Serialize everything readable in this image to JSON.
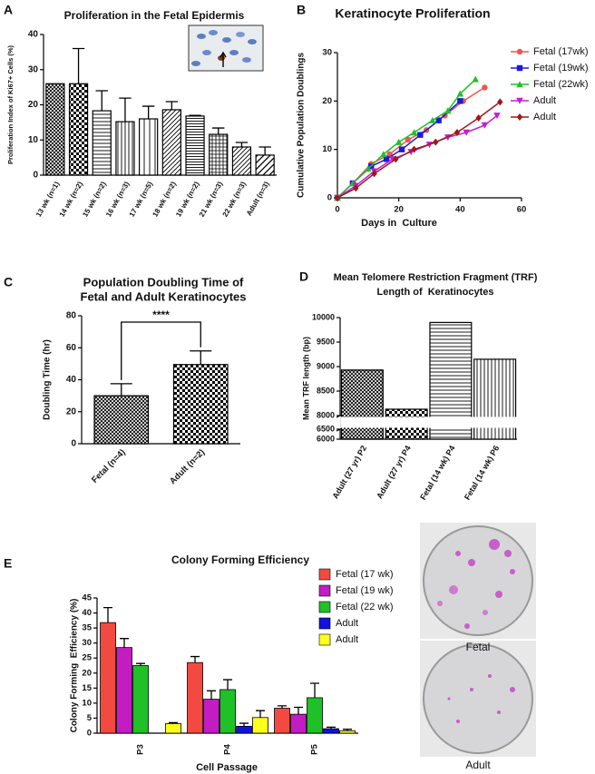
{
  "chart_data": [
    {
      "panel": "A",
      "type": "bar",
      "title": "Proliferation in the Fetal Epidermis",
      "ylabel": "Proliferation Index of Ki67+ Cells (%)",
      "categories": [
        "13 wk (n=1)",
        "14 wk (n=2)",
        "15 wk (n=2)",
        "16 wk (n=3)",
        "17 wk (n=5)",
        "18 wk (n=2)",
        "19 wk (n=2)",
        "21 wk (n=3)",
        "22 wk (n=3)",
        "Adult (n=3)"
      ],
      "values": [
        26,
        26,
        18.3,
        15.2,
        16,
        18.6,
        16.8,
        11.6,
        8,
        5.7
      ],
      "error": [
        null,
        10,
        5.7,
        6.7,
        3.6,
        2.3,
        0.2,
        1.8,
        1.3,
        2.3
      ],
      "ylim": [
        0,
        40
      ],
      "yticks": [
        0,
        10,
        20,
        30,
        40
      ],
      "grid": false
    },
    {
      "panel": "B",
      "type": "line",
      "title": "Keratinocyte Proliferation",
      "xlabel": "Days in  Culture",
      "ylabel": "Cumulative Population Doublings",
      "series": [
        {
          "name": "Fetal (17wk)",
          "color": "#f0554a",
          "x": [
            0,
            5,
            11,
            17,
            23,
            29,
            35,
            41,
            48
          ],
          "values": [
            0,
            3,
            7,
            9,
            12,
            14,
            17,
            20,
            22.8
          ]
        },
        {
          "name": "Fetal (19wk)",
          "color": "#1a1ae0",
          "x": [
            0,
            5,
            11,
            16,
            21,
            27,
            33,
            40
          ],
          "values": [
            0,
            3,
            6.5,
            8,
            10,
            13,
            16,
            20
          ]
        },
        {
          "name": "Fetal (22wk)",
          "color": "#22c02a",
          "x": [
            0,
            5,
            10,
            15,
            20,
            25,
            31,
            36,
            40,
            45
          ],
          "values": [
            0,
            3,
            6,
            9,
            11.5,
            13.5,
            16,
            18,
            21.5,
            24.5
          ]
        },
        {
          "name": "Adult",
          "color": "#c020d0",
          "x": [
            0,
            6,
            12,
            18,
            24,
            30,
            36,
            42,
            48,
            52
          ],
          "values": [
            0,
            2.5,
            5.5,
            8,
            9.5,
            11,
            12.5,
            13.5,
            15,
            17
          ]
        },
        {
          "name": "Adult",
          "color": "#a01818",
          "x": [
            0,
            6,
            12,
            19,
            25,
            32,
            39,
            46,
            53
          ],
          "values": [
            0,
            2,
            5,
            8,
            10,
            11.5,
            13.5,
            16.5,
            19.8
          ]
        }
      ],
      "xlim": [
        0,
        60
      ],
      "xticks": [
        0,
        20,
        40,
        60
      ],
      "ylim": [
        0,
        30
      ],
      "yticks": [
        0,
        10,
        20,
        30
      ],
      "legend": "right",
      "grid": false
    },
    {
      "panel": "C",
      "type": "bar",
      "title": [
        "Population Doubling Time of",
        "Fetal and Adult Keratinocytes"
      ],
      "ylabel": "Doubling Time (hr)",
      "categories": [
        "Fetal (n=4)",
        "Adult (n=2)"
      ],
      "values": [
        30,
        49.5
      ],
      "error": [
        7.5,
        8.5
      ],
      "annotation": "****",
      "ylim": [
        0,
        80
      ],
      "yticks": [
        0,
        20,
        40,
        60,
        80
      ],
      "grid": false
    },
    {
      "panel": "D",
      "type": "bar",
      "title": [
        "Mean Telomere Restriction Fragment (TRF)",
        "Length of  Keratinocytes"
      ],
      "ylabel": "Mean TRF length (bp)",
      "categories": [
        "Adult (27 yr) P2",
        "Adult (27 yr) P4",
        "Fetal (14 wk) P4",
        "Fetal (14 wk) P6"
      ],
      "values": [
        8930,
        8130,
        9900,
        9150
      ],
      "ylim": [
        6000,
        10000
      ],
      "ybreak": [
        6500,
        8000
      ],
      "yticks": [
        6000,
        6500,
        8000,
        8500,
        9000,
        9500,
        10000
      ],
      "grid": false
    },
    {
      "panel": "E",
      "type": "grouped_bar",
      "title": "Colony Forming Efficiency",
      "xlabel": "Cell Passage",
      "ylabel": "Colony Forming  Efficiency (%)",
      "categories": [
        "P3",
        "P4",
        "P5"
      ],
      "series": [
        {
          "name": "Fetal (17 wk)",
          "color": "#f24a40",
          "values": [
            36.8,
            23.5,
            8.3
          ],
          "error": [
            5,
            2,
            0.8
          ]
        },
        {
          "name": "Fetal (19 wk)",
          "color": "#c21cc2",
          "values": [
            28.5,
            11.3,
            6.3
          ],
          "error": [
            3,
            2.8,
            2.3
          ]
        },
        {
          "name": "Fetal (22 wk)",
          "color": "#20c028",
          "values": [
            22.5,
            14.5,
            11.8
          ],
          "error": [
            0.7,
            3.3,
            4.8
          ]
        },
        {
          "name": "Adult",
          "color": "#1212e0",
          "values": [
            null,
            2.3,
            1.5
          ],
          "error": [
            null,
            1,
            0.5
          ]
        },
        {
          "name": "Adult",
          "color": "#ffff1e",
          "values": [
            3.2,
            5.2,
            0.8
          ],
          "error": [
            0.3,
            2.3,
            0.5
          ]
        }
      ],
      "ylim": [
        0,
        45
      ],
      "yticks": [
        0,
        5,
        10,
        15,
        20,
        25,
        30,
        35,
        40,
        45
      ],
      "legend": "right",
      "grid": false
    }
  ],
  "photo_labels": [
    "Fetal",
    "Adult"
  ]
}
